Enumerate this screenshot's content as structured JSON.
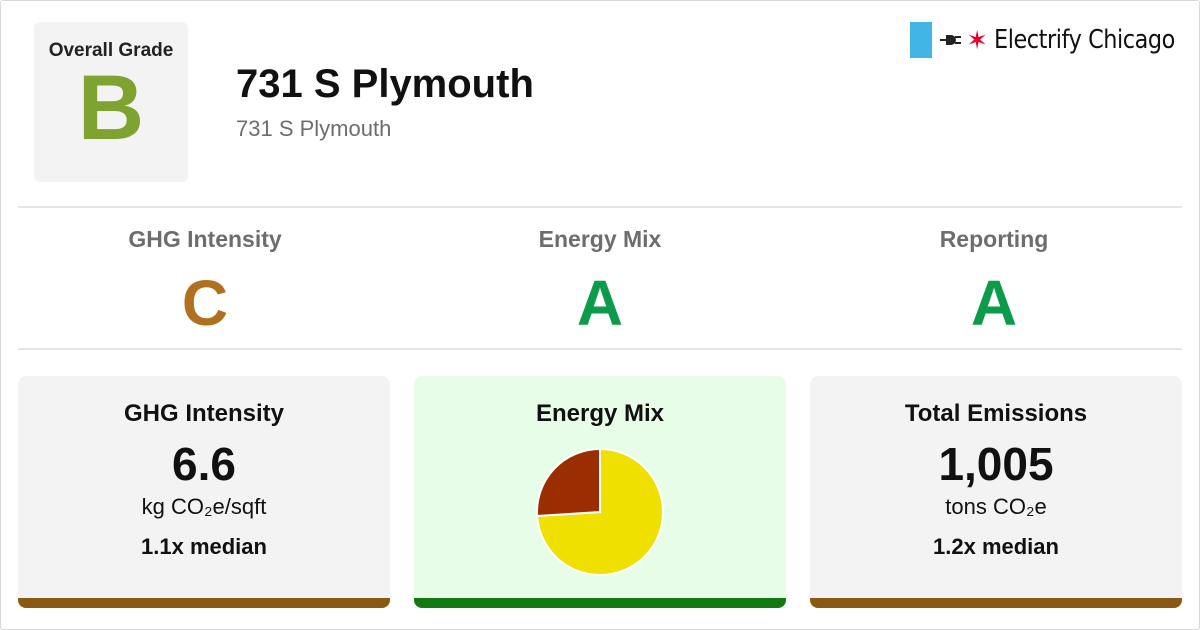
{
  "overall": {
    "label": "Overall Grade",
    "grade": "B",
    "color": "#7fa330"
  },
  "building": {
    "name": "731 S Plymouth",
    "address": "731 S Plymouth"
  },
  "brand": {
    "text": "Electrify Chicago",
    "accent_blue": "#41b6e6",
    "accent_red": "#e4002b",
    "icons": [
      "plug-icon",
      "star-icon"
    ]
  },
  "grades": [
    {
      "label": "GHG Intensity",
      "grade": "C",
      "color": "#b0701e"
    },
    {
      "label": "Energy Mix",
      "grade": "A",
      "color": "#0b9b4b"
    },
    {
      "label": "Reporting",
      "grade": "A",
      "color": "#0b9b4b"
    }
  ],
  "cards": {
    "ghg": {
      "title": "GHG Intensity",
      "value": "6.6",
      "unit": "kg CO₂e/sqft",
      "median": "1.1x median",
      "bar_color": "#8b5a12"
    },
    "energy": {
      "title": "Energy Mix",
      "bar_color": "#137a13"
    },
    "emissions": {
      "title": "Total Emissions",
      "value": "1,005",
      "unit": "tons CO₂e",
      "median": "1.2x median",
      "bar_color": "#8b5a12"
    }
  },
  "chart_data": {
    "type": "pie",
    "title": "",
    "slices": [
      {
        "value": 74,
        "color": "#efe000"
      },
      {
        "value": 26,
        "color": "#9a2e00"
      }
    ]
  }
}
